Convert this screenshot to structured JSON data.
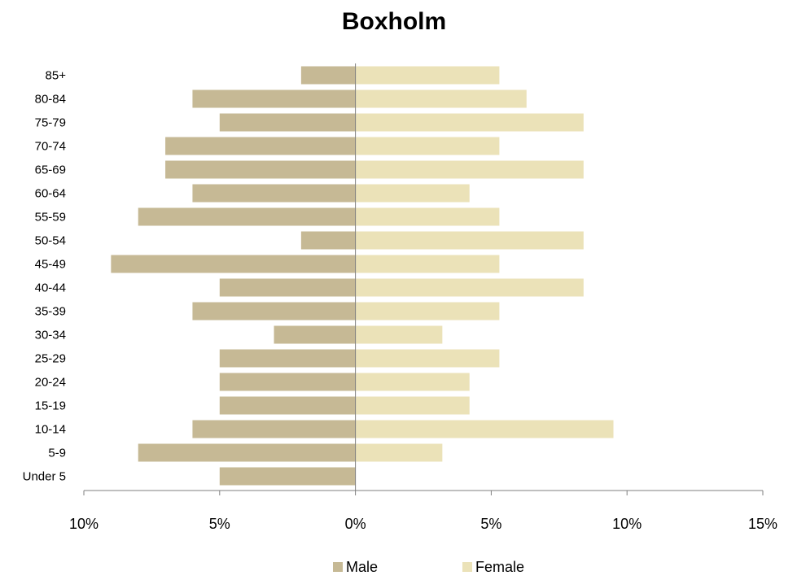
{
  "chart_data": {
    "type": "bar",
    "orientation": "horizontal",
    "title": "Boxholm",
    "xlabel": "",
    "ylabel": "",
    "categories": [
      "85+",
      "80-84",
      "75-79",
      "70-74",
      "65-69",
      "60-64",
      "55-59",
      "50-54",
      "45-49",
      "40-44",
      "35-39",
      "30-34",
      "25-29",
      "20-24",
      "15-19",
      "10-14",
      "5-9",
      "Under 5"
    ],
    "series": [
      {
        "name": "Male",
        "color": "#c6b995",
        "values": [
          2.0,
          6.0,
          5.0,
          7.0,
          7.0,
          6.0,
          8.0,
          2.0,
          9.0,
          5.0,
          6.0,
          3.0,
          5.0,
          5.0,
          5.0,
          6.0,
          8.0,
          5.0
        ]
      },
      {
        "name": "Female",
        "color": "#ebe2b8",
        "values": [
          5.3,
          6.3,
          8.4,
          5.3,
          8.4,
          4.2,
          5.3,
          8.4,
          5.3,
          8.4,
          5.3,
          3.2,
          5.3,
          4.2,
          4.2,
          9.5,
          3.2,
          0.0
        ]
      }
    ],
    "xlim": [
      -10,
      15
    ],
    "xticks": [
      -10,
      -5,
      0,
      5,
      10,
      15
    ],
    "xtick_labels": [
      "10%",
      "5%",
      "0%",
      "5%",
      "10%",
      "15%"
    ],
    "legend": {
      "position": "bottom",
      "entries": [
        "Male",
        "Female"
      ]
    },
    "grid": false
  }
}
